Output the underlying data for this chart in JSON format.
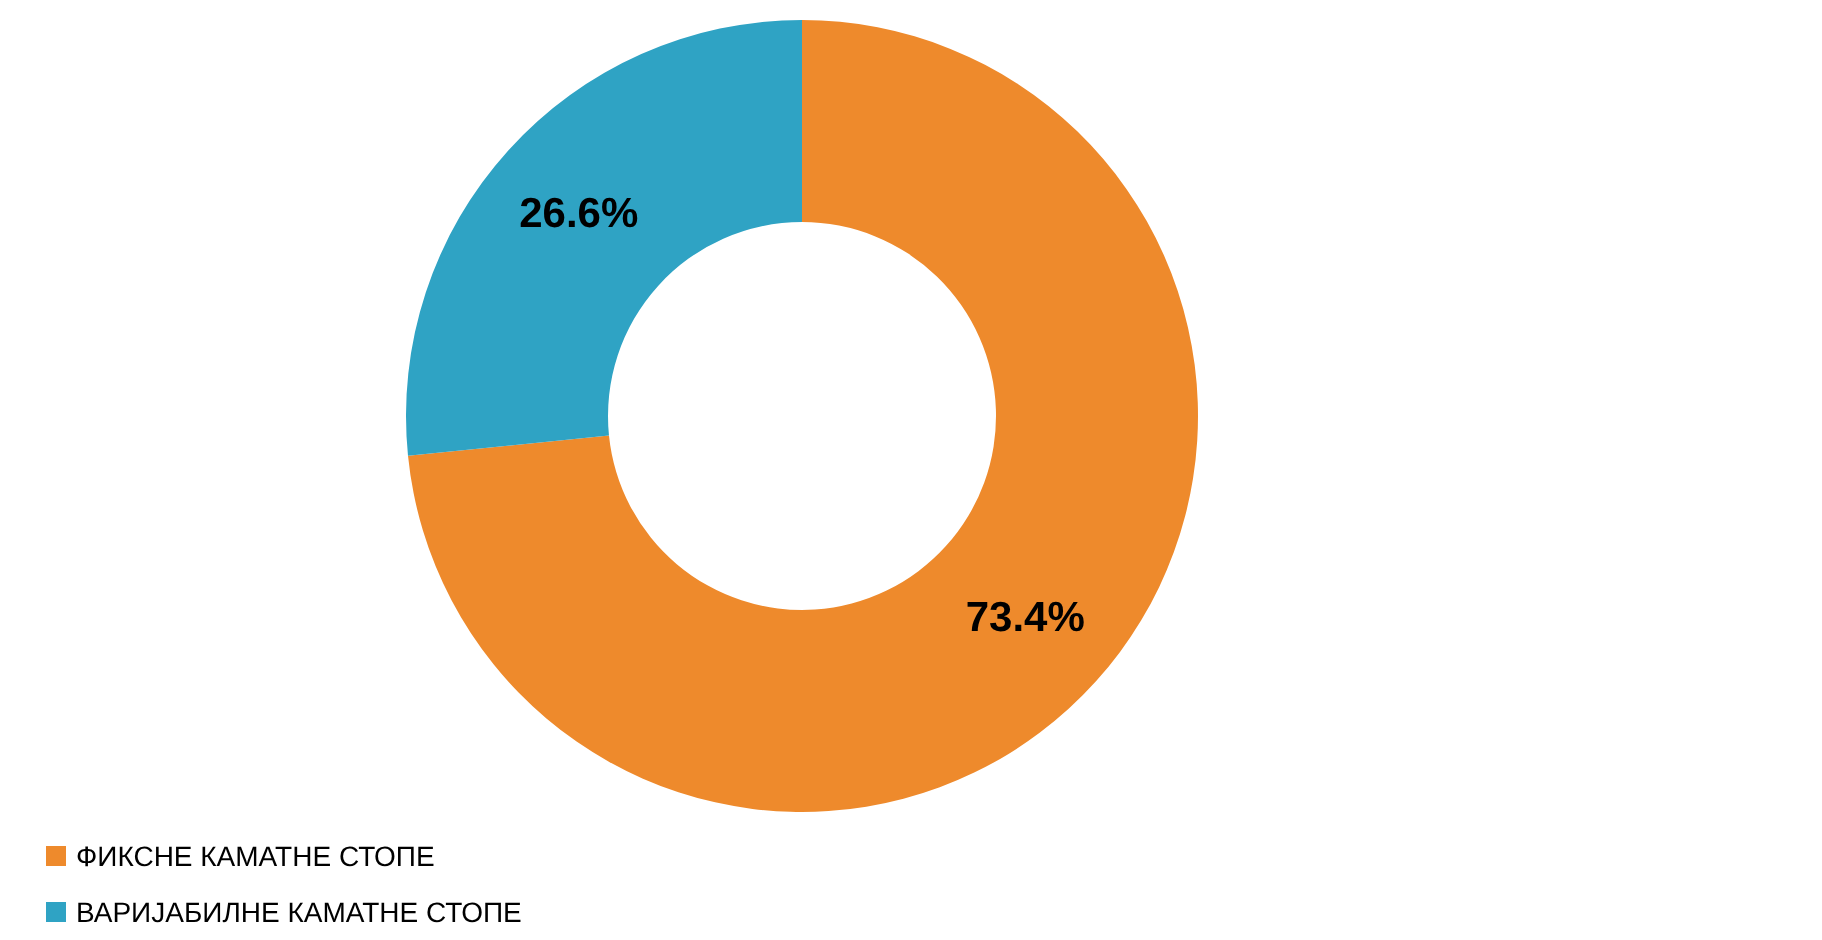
{
  "chart_data": {
    "type": "donut",
    "categories": [
      "ФИКСНЕ КАМАТНЕ СТОПЕ",
      "ВАРИЈАБИЛНЕ КАМАТНЕ СТОПЕ"
    ],
    "values": [
      73.4,
      26.6
    ],
    "colors": [
      "#ee8a2c",
      "#2fa3c4"
    ],
    "value_labels": [
      "73.4%",
      "26.6%"
    ],
    "legend": "bottom left"
  }
}
